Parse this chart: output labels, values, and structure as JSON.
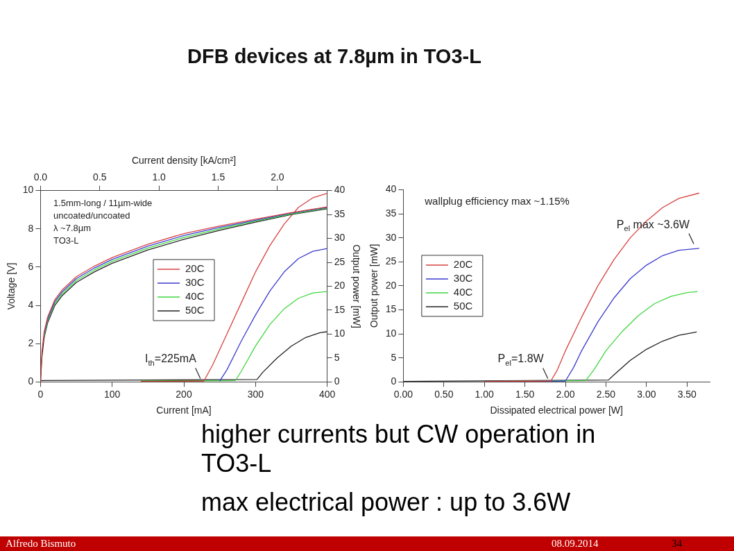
{
  "chart_data": [
    {
      "type": "other",
      "title": "DFB devices at 7.8µm in TO3-L"
    },
    {
      "type": "line",
      "xlabel": "Current [mA]",
      "ylabel": "Voltage [V]",
      "y2label": "Output power [mW]",
      "x2label": "Current density [kA/cm²]",
      "xlim": [
        0,
        400
      ],
      "xticks": [
        0,
        100,
        200,
        300,
        400
      ],
      "ylim": [
        0,
        10
      ],
      "yticks": [
        0,
        2,
        4,
        6,
        8,
        10
      ],
      "y2lim": [
        0,
        40
      ],
      "y2ticks": [
        0,
        5,
        10,
        15,
        20,
        25,
        30,
        35,
        40
      ],
      "x2lim": [
        0,
        2.42
      ],
      "x2ticks": [
        {
          "value": 0,
          "label": "0.0"
        },
        {
          "value": 0.5,
          "label": "0.5"
        },
        {
          "value": 1,
          "label": "1.0"
        },
        {
          "value": 1.5,
          "label": "1.5"
        },
        {
          "value": 2,
          "label": "2.0"
        }
      ],
      "legend": "center",
      "series": [
        {
          "name": "20C",
          "color": "#d94040",
          "axis": "y",
          "x": [
            0,
            2,
            5,
            10,
            20,
            30,
            50,
            75,
            100,
            150,
            200,
            250,
            300,
            350,
            400
          ],
          "values": [
            0,
            1.6,
            2.6,
            3.4,
            4.3,
            4.8,
            5.5,
            6.05,
            6.5,
            7.2,
            7.75,
            8.15,
            8.5,
            8.85,
            9.15
          ]
        },
        {
          "name": "30C",
          "color": "#3a3ad0",
          "axis": "y",
          "x": [
            5,
            10,
            20,
            30,
            50,
            75,
            100,
            150,
            200,
            250,
            300,
            350,
            400
          ],
          "values": [
            2.5,
            3.3,
            4.2,
            4.7,
            5.4,
            5.95,
            6.4,
            7.1,
            7.65,
            8.08,
            8.45,
            8.82,
            9.12
          ]
        },
        {
          "name": "40C",
          "color": "#3fd63f",
          "axis": "y",
          "x": [
            5,
            10,
            20,
            30,
            50,
            75,
            100,
            150,
            200,
            250,
            300,
            350,
            400
          ],
          "values": [
            2.4,
            3.2,
            4.1,
            4.6,
            5.3,
            5.85,
            6.3,
            7.0,
            7.55,
            8.0,
            8.4,
            8.78,
            9.08
          ]
        },
        {
          "name": "50C",
          "color": "#202020",
          "axis": "y",
          "x": [
            0,
            2,
            5,
            10,
            20,
            30,
            50,
            75,
            100,
            150,
            200,
            250,
            300,
            350,
            400
          ],
          "values": [
            0,
            1.3,
            2.3,
            3.1,
            4.0,
            4.5,
            5.2,
            5.75,
            6.2,
            6.9,
            7.45,
            7.92,
            8.35,
            8.75,
            9.05
          ]
        },
        {
          "color": "#d94040",
          "axis": "y2",
          "x": [
            140,
            228,
            240,
            260,
            280,
            300,
            320,
            340,
            360,
            380,
            400
          ],
          "values": [
            0.1,
            0.2,
            3.5,
            10,
            16.5,
            23,
            28.5,
            33,
            36.5,
            38.5,
            39.4
          ]
        },
        {
          "color": "#3a3ad0",
          "axis": "y2",
          "x": [
            250,
            260,
            280,
            300,
            320,
            340,
            360,
            380,
            400
          ],
          "values": [
            0.2,
            2.5,
            8.5,
            14,
            19,
            23,
            25.8,
            27.3,
            27.9
          ]
        },
        {
          "color": "#3fd63f",
          "axis": "y2",
          "x": [
            140,
            272,
            280,
            300,
            320,
            340,
            360,
            380,
            400
          ],
          "values": [
            0.2,
            0.3,
            2.2,
            7.5,
            12,
            15.3,
            17.5,
            18.6,
            18.9
          ]
        },
        {
          "color": "#202020",
          "axis": "y2",
          "x": [
            0,
            302,
            310,
            330,
            350,
            370,
            390,
            400
          ],
          "values": [
            0.3,
            0.5,
            2,
            5,
            7.5,
            9.3,
            10.3,
            10.5
          ]
        }
      ],
      "annotations": [
        "1.5mm-long / 11µm-wide",
        "uncoated/uncoated",
        "λ ~7.8µm",
        "TO3-L",
        {
          "text": "I$_{th}$=225mA",
          "x": 225,
          "y": 0
        }
      ]
    },
    {
      "type": "line",
      "xlabel": "Dissipated electrical power [W]",
      "ylabel": "Output power [mW]",
      "xlim": [
        0,
        3.78
      ],
      "xticks": [
        {
          "value": 0,
          "label": "0.00"
        },
        {
          "value": 0.5,
          "label": "0.50"
        },
        {
          "value": 1,
          "label": "1.00"
        },
        {
          "value": 1.5,
          "label": "1.50"
        },
        {
          "value": 2,
          "label": "2.00"
        },
        {
          "value": 2.5,
          "label": "2.50"
        },
        {
          "value": 3,
          "label": "3.00"
        },
        {
          "value": 3.5,
          "label": "3.50"
        }
      ],
      "ylim": [
        0,
        40
      ],
      "yticks": [
        0,
        5,
        10,
        15,
        20,
        25,
        30,
        35,
        40
      ],
      "legend": "center left",
      "series": [
        {
          "name": "20C",
          "color": "#d94040",
          "x": [
            1,
            1.82,
            1.9,
            2,
            2.2,
            2.4,
            2.6,
            2.8,
            3,
            3.2,
            3.4,
            3.65
          ],
          "values": [
            0.1,
            0.2,
            2.5,
            6.5,
            13.5,
            20,
            25.5,
            30,
            33.5,
            36.3,
            38.2,
            39.3
          ]
        },
        {
          "name": "30C",
          "color": "#3a3ad0",
          "x": [
            1,
            2,
            2.1,
            2.2,
            2.4,
            2.6,
            2.8,
            3,
            3.2,
            3.4,
            3.65
          ],
          "values": [
            0.1,
            0.2,
            3,
            6.5,
            12.5,
            17.5,
            21.5,
            24.3,
            26.3,
            27.4,
            27.8
          ]
        },
        {
          "name": "40C",
          "color": "#3fd63f",
          "x": [
            1,
            2.25,
            2.35,
            2.5,
            2.7,
            2.9,
            3.1,
            3.3,
            3.5,
            3.63
          ],
          "values": [
            0.1,
            0.3,
            2.5,
            6.5,
            10.5,
            13.8,
            16.3,
            17.8,
            18.6,
            18.8
          ]
        },
        {
          "name": "50C",
          "color": "#202020",
          "x": [
            0,
            2.53,
            2.6,
            2.8,
            3,
            3.2,
            3.4,
            3.62
          ],
          "values": [
            0.1,
            0.4,
            1.5,
            4.5,
            6.8,
            8.5,
            9.7,
            10.4
          ]
        }
      ],
      "annotations": [
        "wallplug efficiency max ~1.15%",
        {
          "text": "P$_{el}$=1.8W",
          "x": 1.8,
          "y": 0
        },
        {
          "text": "P$_{el}$ max ~3.6W",
          "x": 3.6,
          "y": 28
        }
      ]
    },
    {
      "type": "other",
      "annotations": [
        "higher currents but CW operation in TO3-L",
        "max electrical power : up to 3.6W"
      ]
    },
    {
      "type": "other",
      "annotations": [
        "Alfredo Bismuto",
        "08.09.2014",
        "34"
      ]
    }
  ]
}
